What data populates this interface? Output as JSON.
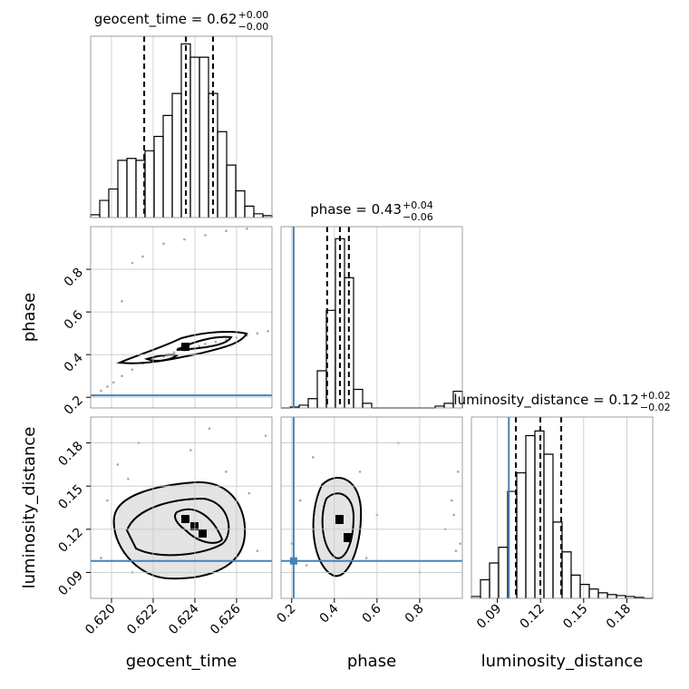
{
  "chart_data": {
    "type": "corner",
    "truth_color": "#4682b4",
    "parameters": [
      {
        "name": "geocent_time",
        "lim": [
          0.619,
          0.6277
        ],
        "ticks": [
          {
            "value": 0.62,
            "label": "0.620"
          },
          0.622,
          0.624,
          0.626
        ],
        "title": {
          "text": "geocent_time = 0.62",
          "upper": "+0.00",
          "lower": "−0.00"
        },
        "quantiles": [
          0.62157,
          0.62357,
          0.62487
        ],
        "bins": [
          0.619,
          0.619435,
          0.61987,
          0.620305,
          0.62074,
          0.621175,
          0.62161,
          0.622045,
          0.62248,
          0.622915,
          0.62335,
          0.623785,
          0.62422,
          0.624655,
          0.62509,
          0.625525,
          0.62596,
          0.626395,
          0.62683,
          0.627265,
          0.6277
        ],
        "counts": [
          3,
          18,
          30,
          60,
          62,
          60,
          70,
          85,
          107,
          130,
          182,
          168,
          168,
          130,
          90,
          55,
          28,
          12,
          4,
          2
        ],
        "ylim": [
          0,
          190
        ]
      },
      {
        "name": "phase",
        "lim": [
          0.15,
          1.0
        ],
        "ticks": [
          0.2,
          0.4,
          0.6,
          0.8
        ],
        "truth": 0.209,
        "title": {
          "text": "phase = 0.43",
          "upper": "+0.04",
          "lower": "−0.06"
        },
        "quantiles": [
          0.366,
          0.426,
          0.468
        ],
        "bins": [
          0.15,
          0.1925,
          0.235,
          0.2775,
          0.32,
          0.3625,
          0.405,
          0.4475,
          0.49,
          0.5325,
          0.575,
          0.6175,
          0.66,
          0.7025,
          0.745,
          0.7875,
          0.83,
          0.8725,
          0.915,
          0.9575,
          1.0
        ],
        "counts": [
          0,
          1,
          3,
          10,
          40,
          105,
          182,
          140,
          20,
          5,
          0,
          0,
          0,
          0,
          0,
          0,
          0,
          2,
          5,
          18
        ],
        "ylim": [
          0,
          195
        ]
      },
      {
        "name": "luminosity_distance",
        "lim": [
          0.072,
          0.198
        ],
        "ticks": [
          0.09,
          0.12,
          0.15,
          0.18
        ],
        "truth": 0.098,
        "title": {
          "text": "luminosity_distance = 0.12",
          "upper": "+0.02",
          "lower": "−0.02"
        },
        "quantiles": [
          0.1029,
          0.1199,
          0.1344
        ],
        "bins": [
          0.072,
          0.0783,
          0.0846,
          0.0909,
          0.0972,
          0.1035,
          0.1098,
          0.1161,
          0.1224,
          0.1287,
          0.135,
          0.1413,
          0.1476,
          0.1539,
          0.1602,
          0.1665,
          0.1728,
          0.1791,
          0.1854,
          0.1917,
          0.198
        ],
        "counts": [
          2,
          20,
          38,
          55,
          115,
          135,
          175,
          180,
          155,
          82,
          50,
          25,
          15,
          10,
          6,
          4,
          3,
          2,
          1,
          0
        ],
        "ylim": [
          0,
          195
        ]
      }
    ],
    "pairs": [
      {
        "points": [
          [
            0.6192,
            0.21
          ],
          [
            0.6195,
            0.23
          ],
          [
            0.6198,
            0.25
          ],
          [
            0.6201,
            0.27
          ],
          [
            0.6205,
            0.3
          ],
          [
            0.621,
            0.33
          ],
          [
            0.6215,
            0.36
          ],
          [
            0.622,
            0.38
          ],
          [
            0.6225,
            0.39
          ],
          [
            0.623,
            0.41
          ],
          [
            0.6235,
            0.42
          ],
          [
            0.624,
            0.43
          ],
          [
            0.6245,
            0.45
          ],
          [
            0.625,
            0.46
          ],
          [
            0.6255,
            0.47
          ],
          [
            0.626,
            0.48
          ],
          [
            0.6265,
            0.49
          ],
          [
            0.627,
            0.5
          ],
          [
            0.6275,
            0.51
          ],
          [
            0.6225,
            0.92
          ],
          [
            0.6235,
            0.94
          ],
          [
            0.6245,
            0.96
          ],
          [
            0.6255,
            0.98
          ],
          [
            0.6265,
            0.99
          ],
          [
            0.621,
            0.83
          ],
          [
            0.6215,
            0.86
          ],
          [
            0.6205,
            0.65
          ],
          [
            0.6238,
            0.4
          ],
          [
            0.6242,
            0.44
          ],
          [
            0.6232,
            0.43
          ]
        ]
      },
      {
        "points": [
          [
            0.6195,
            0.1
          ],
          [
            0.6198,
            0.14
          ],
          [
            0.6203,
            0.165
          ],
          [
            0.6206,
            0.12
          ],
          [
            0.621,
            0.09
          ],
          [
            0.6213,
            0.18
          ],
          [
            0.6217,
            0.13
          ],
          [
            0.622,
            0.105
          ],
          [
            0.6224,
            0.15
          ],
          [
            0.6227,
            0.12
          ],
          [
            0.623,
            0.135
          ],
          [
            0.6233,
            0.11
          ],
          [
            0.6236,
            0.128
          ],
          [
            0.6238,
            0.175
          ],
          [
            0.624,
            0.118
          ],
          [
            0.6243,
            0.14
          ],
          [
            0.6246,
            0.122
          ],
          [
            0.6249,
            0.095
          ],
          [
            0.6252,
            0.13
          ],
          [
            0.6255,
            0.16
          ],
          [
            0.6258,
            0.11
          ],
          [
            0.6262,
            0.125
          ],
          [
            0.6266,
            0.145
          ],
          [
            0.627,
            0.105
          ],
          [
            0.6274,
            0.185
          ],
          [
            0.6208,
            0.155
          ],
          [
            0.6222,
            0.088
          ],
          [
            0.6247,
            0.19
          ],
          [
            0.6228,
            0.125
          ],
          [
            0.6244,
            0.115
          ]
        ]
      },
      {
        "points": [
          [
            0.2,
            0.11
          ],
          [
            0.24,
            0.14
          ],
          [
            0.27,
            0.095
          ],
          [
            0.3,
            0.17
          ],
          [
            0.32,
            0.12
          ],
          [
            0.34,
            0.135
          ],
          [
            0.35,
            0.1
          ],
          [
            0.36,
            0.15
          ],
          [
            0.38,
            0.125
          ],
          [
            0.39,
            0.13
          ],
          [
            0.4,
            0.118
          ],
          [
            0.41,
            0.14
          ],
          [
            0.42,
            0.128
          ],
          [
            0.43,
            0.11
          ],
          [
            0.44,
            0.135
          ],
          [
            0.45,
            0.12
          ],
          [
            0.46,
            0.095
          ],
          [
            0.47,
            0.145
          ],
          [
            0.49,
            0.115
          ],
          [
            0.52,
            0.16
          ],
          [
            0.55,
            0.1
          ],
          [
            0.6,
            0.13
          ],
          [
            0.7,
            0.18
          ],
          [
            0.8,
            0.09
          ],
          [
            0.92,
            0.12
          ],
          [
            0.95,
            0.14
          ],
          [
            0.97,
            0.105
          ],
          [
            0.98,
            0.16
          ],
          [
            0.96,
            0.13
          ],
          [
            0.99,
            0.11
          ]
        ]
      }
    ]
  }
}
